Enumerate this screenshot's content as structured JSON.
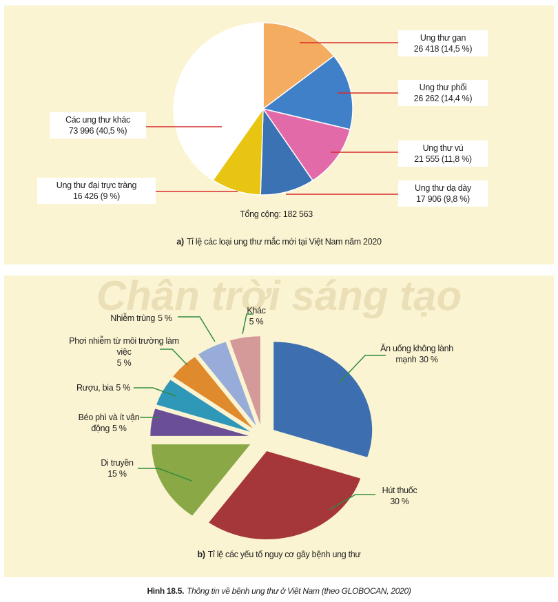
{
  "figure": {
    "label": "Hình 18.5.",
    "caption": "Thông tin về bệnh ung thư ở Việt Nam (theo GLOBOCAN, 2020)"
  },
  "watermark": "Chân trời sáng tạo",
  "chart_data": [
    {
      "type": "pie",
      "label": "a)",
      "title": "Tỉ lệ các loại ung thư mắc mới tại Việt Nam năm 2020",
      "note": "Tổng cộng: 182 563",
      "categories": [
        "Ung thư gan",
        "Ung thư phổi",
        "Ung thư vú",
        "Ung thư dạ dày",
        "Ung thư đại trực tràng",
        "Các ung thư khác"
      ],
      "values": [
        26418,
        26262,
        21555,
        17906,
        16426,
        73996
      ],
      "value_labels": [
        "26 418 (14,5 %)",
        "26 262 (14,4 %)",
        "21 555 (11,8 %)",
        "17 906 (9,8 %)",
        "16 426 (9 %)",
        "73 996 (40,5 %)"
      ],
      "colors": [
        "#f4ad60",
        "#3f80c8",
        "#e36aa9",
        "#3b72b4",
        "#e8c512",
        "#ffffff"
      ]
    },
    {
      "type": "pie",
      "exploded": true,
      "label": "b)",
      "title": "Tỉ lệ các yếu tố nguy cơ gây bệnh ung thư",
      "categories": [
        "Ăn uống không lành mạnh",
        "Hút thuốc",
        "Di truyền",
        "Béo phì và ít vận động",
        "Rượu, bia",
        "Phơi nhiễm từ môi trường làm việc",
        "Nhiễm trùng",
        "Khác"
      ],
      "values": [
        30,
        30,
        15,
        5,
        5,
        5,
        5,
        5
      ],
      "value_labels": [
        "30 %",
        "30 %",
        "15 %",
        "5 %",
        "5 %",
        "5 %",
        "5 %",
        "5 %"
      ],
      "colors": [
        "#3d6fb0",
        "#a5363a",
        "#8aa846",
        "#6a4f96",
        "#2f97b8",
        "#e08a2e",
        "#97acd8",
        "#d49a9a"
      ]
    }
  ]
}
